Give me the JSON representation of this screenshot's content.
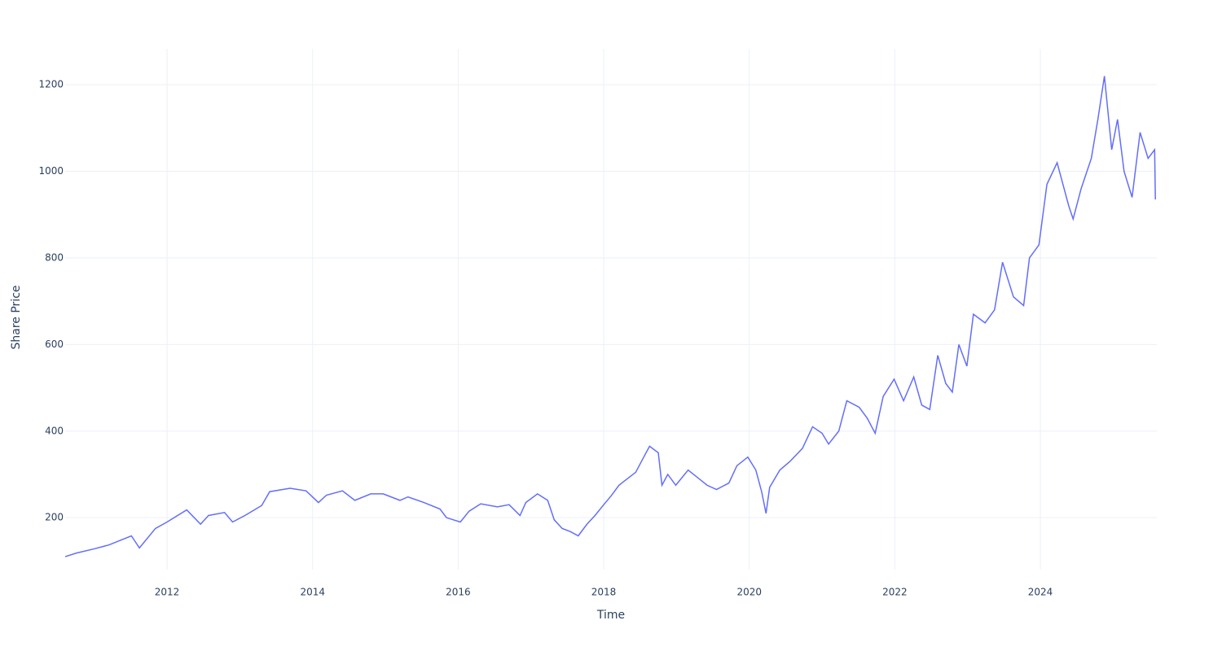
{
  "chart_data": {
    "type": "line",
    "xlabel": "Time",
    "ylabel": "Share Price",
    "x": [
      2010.6,
      2010.75,
      2011.0,
      2011.2,
      2011.51,
      2011.62,
      2011.84,
      2012.0,
      2012.27,
      2012.46,
      2012.57,
      2012.79,
      2012.9,
      2013.07,
      2013.3,
      2013.41,
      2013.69,
      2013.91,
      2014.08,
      2014.19,
      2014.41,
      2014.58,
      2014.8,
      2014.97,
      2015.2,
      2015.31,
      2015.53,
      2015.75,
      2015.84,
      2016.03,
      2016.15,
      2016.31,
      2016.54,
      2016.7,
      2016.85,
      2016.93,
      2017.09,
      2017.23,
      2017.32,
      2017.43,
      2017.54,
      2017.65,
      2017.77,
      2017.88,
      2018.0,
      2018.1,
      2018.21,
      2018.44,
      2018.55,
      2018.63,
      2018.75,
      2018.8,
      2018.88,
      2018.99,
      2019.16,
      2019.31,
      2019.42,
      2019.55,
      2019.72,
      2019.83,
      2019.98,
      2020.09,
      2020.17,
      2020.23,
      2020.28,
      2020.42,
      2020.56,
      2020.73,
      2020.87,
      2021.0,
      2021.09,
      2021.23,
      2021.34,
      2021.51,
      2021.62,
      2021.73,
      2021.84,
      2021.99,
      2022.12,
      2022.26,
      2022.37,
      2022.48,
      2022.59,
      2022.7,
      2022.79,
      2022.88,
      2022.99,
      2023.08,
      2023.24,
      2023.37,
      2023.48,
      2023.63,
      2023.77,
      2023.85,
      2023.98,
      2024.09,
      2024.23,
      2024.39,
      2024.45,
      2024.56,
      2024.7,
      2024.79,
      2024.88,
      2024.98,
      2025.06,
      2025.15,
      2025.26,
      2025.37,
      2025.48,
      2025.57,
      2025.58
    ],
    "series": [
      {
        "name": "Share Price",
        "color": "#636efa",
        "values": [
          110,
          118,
          128,
          137,
          158,
          130,
          175,
          190,
          218,
          185,
          205,
          212,
          190,
          205,
          228,
          260,
          268,
          262,
          235,
          252,
          262,
          240,
          255,
          255,
          240,
          248,
          235,
          220,
          200,
          190,
          215,
          232,
          225,
          230,
          205,
          235,
          255,
          240,
          195,
          175,
          168,
          158,
          185,
          205,
          230,
          250,
          275,
          305,
          340,
          365,
          350,
          275,
          300,
          275,
          310,
          290,
          275,
          265,
          280,
          320,
          340,
          310,
          260,
          210,
          270,
          310,
          330,
          360,
          410,
          395,
          370,
          400,
          470,
          455,
          430,
          395,
          480,
          520,
          470,
          525,
          460,
          450,
          575,
          510,
          490,
          600,
          550,
          670,
          650,
          680,
          790,
          710,
          690,
          800,
          830,
          970,
          1020,
          920,
          890,
          960,
          1030,
          1120,
          1220,
          1050,
          1120,
          1000,
          940,
          1090,
          1030,
          1050,
          935
        ]
      }
    ],
    "xlim": [
      2010.6,
      2025.6
    ],
    "xticks": [
      2012,
      2014,
      2016,
      2018,
      2020,
      2022,
      2024
    ],
    "ylim": [
      80,
      1283
    ],
    "yticks": [
      200,
      400,
      600,
      800,
      1000,
      1200
    ],
    "grid": true
  }
}
